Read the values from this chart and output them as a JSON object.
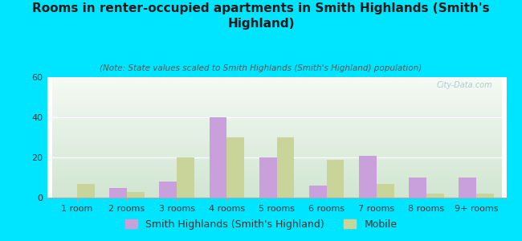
{
  "title": "Rooms in renter-occupied apartments in Smith Highlands (Smith's\nHighland)",
  "subtitle": "(Note: State values scaled to Smith Highlands (Smith's Highland) population)",
  "categories": [
    "1 room",
    "2 rooms",
    "3 rooms",
    "4 rooms",
    "5 rooms",
    "6 rooms",
    "7 rooms",
    "8 rooms",
    "9+ rooms"
  ],
  "smith_values": [
    0,
    5,
    8,
    40,
    20,
    6,
    21,
    10,
    10
  ],
  "mobile_values": [
    7,
    3,
    20,
    30,
    30,
    19,
    7,
    2,
    2
  ],
  "smith_color": "#c9a0dc",
  "mobile_color": "#c8d49a",
  "background_color": "#00e5ff",
  "ylim": [
    0,
    60
  ],
  "yticks": [
    0,
    20,
    40,
    60
  ],
  "legend_smith": "Smith Highlands (Smith's Highland)",
  "legend_mobile": "Mobile",
  "watermark": "City-Data.com",
  "bar_width": 0.35,
  "title_fontsize": 11,
  "subtitle_fontsize": 7.5,
  "axis_fontsize": 8,
  "legend_fontsize": 9
}
